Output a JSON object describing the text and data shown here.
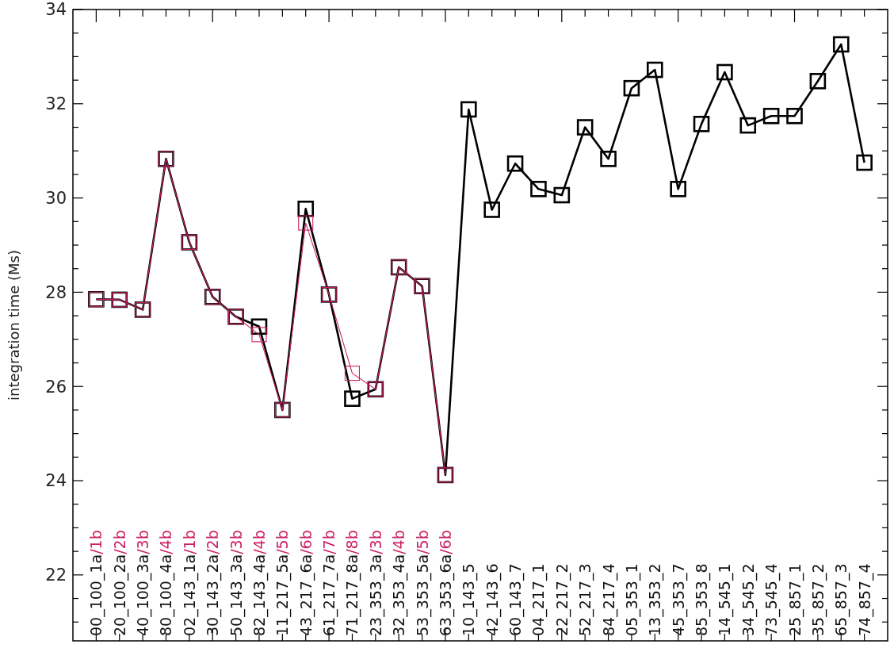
{
  "chart_data": {
    "type": "line",
    "ylabel": "integration time (Ms)",
    "categories": [
      "00_100_1a/1b",
      "20_100_2a/2b",
      "40_100_3a/3b",
      "80_100_4a/4b",
      "02_143_1a/1b",
      "30_143_2a/2b",
      "50_143_3a/3b",
      "82_143_4a/4b",
      "11_217_5a/5b",
      "43_217_6a/6b",
      "61_217_7a/7b",
      "71_217_8a/8b",
      "23_353_3a/3b",
      "32_353_4a/4b",
      "53_353_5a/5b",
      "63_353_6a/6b",
      "10_143_5",
      "42_143_6",
      "60_143_7",
      "04_217_1",
      "22_217_2",
      "52_217_3",
      "84_217_4",
      "05_353_1",
      "13_353_2",
      "45_353_7",
      "85_353_8",
      "14_545_1",
      "34_545_2",
      "73_545_4",
      "25_857_1",
      "35_857_2",
      "65_857_3",
      "74_857_4"
    ],
    "series": [
      {
        "color": "#000000",
        "values": [
          27.85,
          27.84,
          27.63,
          30.83,
          29.06,
          27.9,
          27.48,
          27.27,
          25.5,
          29.77,
          27.95,
          25.74,
          25.94,
          28.53,
          28.13,
          24.12,
          31.88,
          29.75,
          30.73,
          30.19,
          30.06,
          31.5,
          30.83,
          32.33,
          32.72,
          30.19,
          31.57,
          32.67,
          31.54,
          31.74,
          31.74,
          32.48,
          33.26,
          30.75
        ]
      },
      {
        "color": "#cc2266",
        "values": [
          27.85,
          27.84,
          27.63,
          30.83,
          29.06,
          27.9,
          27.48,
          27.1,
          25.5,
          29.47,
          27.95,
          26.28,
          25.94,
          28.53,
          28.13,
          24.12,
          null,
          null,
          null,
          null,
          null,
          null,
          null,
          null,
          null,
          null,
          null,
          null,
          null,
          null,
          null,
          null,
          null,
          null
        ]
      }
    ],
    "ylim": [
      20.6,
      34
    ],
    "yticks": [
      {
        "value": 21,
        "label": null
      },
      {
        "value": 21.5,
        "label": null
      },
      22,
      {
        "value": 22.5,
        "label": null
      },
      {
        "value": 23,
        "label": null
      },
      {
        "value": 23.5,
        "label": null
      },
      24,
      {
        "value": 24.5,
        "label": null
      },
      {
        "value": 25,
        "label": null
      },
      {
        "value": 25.5,
        "label": null
      },
      26,
      {
        "value": 26.5,
        "label": null
      },
      {
        "value": 27,
        "label": null
      },
      {
        "value": 27.5,
        "label": null
      },
      28,
      {
        "value": 28.5,
        "label": null
      },
      {
        "value": 29,
        "label": null
      },
      {
        "value": 29.5,
        "label": null
      },
      30,
      {
        "value": 30.5,
        "label": null
      },
      {
        "value": 31,
        "label": null
      },
      {
        "value": 31.5,
        "label": null
      },
      32,
      {
        "value": 32.5,
        "label": null
      },
      {
        "value": 33,
        "label": null
      },
      {
        "value": 33.5,
        "label": null
      },
      34
    ],
    "marker": "square",
    "grid": false
  }
}
